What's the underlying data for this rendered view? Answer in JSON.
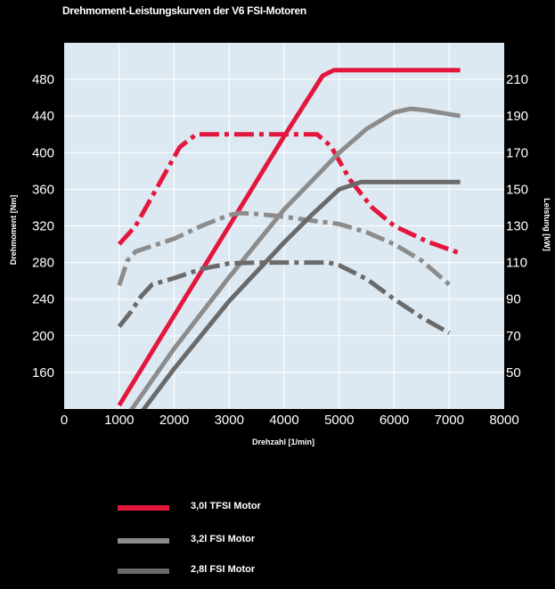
{
  "chart_data": {
    "type": "line",
    "title": "Drehmoment-Leistungskurven der V6 FSI-Motoren",
    "xlabel": "Drehzahl [1/min]",
    "ylabel_left": "Drehmoment [Nm]",
    "ylabel_right": "Leistung [kW]",
    "xlim": [
      0,
      8000
    ],
    "x_ticks": [
      {
        "value": 0,
        "label": "0"
      },
      {
        "value": 1000,
        "label": "1000"
      },
      {
        "value": 2000,
        "label": "2000"
      },
      {
        "value": 3000,
        "label": "3000"
      },
      {
        "value": 4000,
        "label": "4000"
      },
      {
        "value": 5000,
        "label": "5000"
      },
      {
        "value": 6000,
        "label": "6000"
      },
      {
        "value": 7000,
        "label": "7000"
      },
      {
        "value": 8000,
        "label": "8000"
      }
    ],
    "y_left_ticks": [
      160,
      200,
      240,
      280,
      320,
      360,
      400,
      440,
      480
    ],
    "y_right_ticks": [
      50,
      70,
      90,
      110,
      130,
      150,
      170,
      190,
      210
    ],
    "torque_scale": {
      "min": 120,
      "max": 520
    },
    "power_scale": {
      "min": 30,
      "max": 230
    },
    "grid": true,
    "legend_position": "bottom",
    "series": [
      {
        "name": "3,0l TFSI Motor",
        "kind": "power",
        "color": "#e3173e",
        "points": [
          [
            1000,
            32
          ],
          [
            2000,
            81
          ],
          [
            3000,
            130
          ],
          [
            4000,
            179
          ],
          [
            4700,
            212
          ],
          [
            4900,
            215
          ],
          [
            5100,
            215
          ],
          [
            7200,
            215
          ]
        ]
      },
      {
        "name": "3,0l TFSI Motor",
        "kind": "torque",
        "color": "#e3173e",
        "points": [
          [
            1000,
            300
          ],
          [
            1300,
            320
          ],
          [
            1700,
            363
          ],
          [
            2100,
            406
          ],
          [
            2400,
            420
          ],
          [
            3000,
            420
          ],
          [
            4000,
            420
          ],
          [
            4600,
            420
          ],
          [
            4850,
            407
          ],
          [
            5200,
            370
          ],
          [
            5600,
            340
          ],
          [
            6000,
            320
          ],
          [
            6600,
            303
          ],
          [
            7200,
            290
          ]
        ]
      },
      {
        "name": "3,2l FSI Motor",
        "kind": "power",
        "color": "#8c8c8c",
        "points": [
          [
            1000,
            20
          ],
          [
            2000,
            63
          ],
          [
            3000,
            102
          ],
          [
            4000,
            139
          ],
          [
            5000,
            170
          ],
          [
            5500,
            183
          ],
          [
            6000,
            192
          ],
          [
            6300,
            194
          ],
          [
            6600,
            193
          ],
          [
            7200,
            190
          ]
        ]
      },
      {
        "name": "3,2l FSI Motor",
        "kind": "torque",
        "color": "#8c8c8c",
        "points": [
          [
            1000,
            255
          ],
          [
            1150,
            282
          ],
          [
            1300,
            292
          ],
          [
            1600,
            298
          ],
          [
            2000,
            306
          ],
          [
            2500,
            320
          ],
          [
            3000,
            332
          ],
          [
            3200,
            334
          ],
          [
            3500,
            333
          ],
          [
            4000,
            330
          ],
          [
            4600,
            325
          ],
          [
            5000,
            322
          ],
          [
            5500,
            313
          ],
          [
            6000,
            300
          ],
          [
            6500,
            282
          ],
          [
            7000,
            256
          ]
        ]
      },
      {
        "name": "2,8l FSI Motor",
        "kind": "power",
        "color": "#6a6a6a",
        "points": [
          [
            1000,
            12
          ],
          [
            2000,
            52
          ],
          [
            3000,
            89
          ],
          [
            4000,
            121
          ],
          [
            4500,
            136
          ],
          [
            5000,
            150
          ],
          [
            5400,
            154
          ],
          [
            5700,
            154
          ],
          [
            7200,
            154
          ]
        ]
      },
      {
        "name": "2,8l FSI Motor",
        "kind": "torque",
        "color": "#6a6a6a",
        "points": [
          [
            1000,
            210
          ],
          [
            1200,
            225
          ],
          [
            1400,
            243
          ],
          [
            1600,
            256
          ],
          [
            2000,
            263
          ],
          [
            2500,
            273
          ],
          [
            3000,
            279
          ],
          [
            3500,
            280
          ],
          [
            4000,
            280
          ],
          [
            4500,
            280
          ],
          [
            4800,
            280
          ],
          [
            5000,
            277
          ],
          [
            5500,
            262
          ],
          [
            6000,
            240
          ],
          [
            6500,
            220
          ],
          [
            7000,
            203
          ]
        ]
      }
    ],
    "legend": [
      {
        "label": "3,0l TFSI Motor",
        "color": "#e3173e"
      },
      {
        "label": "3,2l FSI Motor",
        "color": "#8c8c8c"
      },
      {
        "label": "2,8l FSI Motor",
        "color": "#6a6a6a"
      }
    ]
  }
}
